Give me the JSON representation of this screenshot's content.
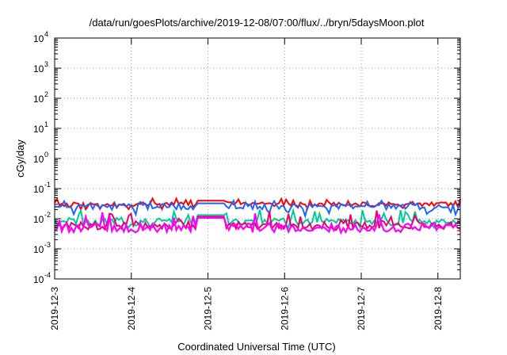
{
  "chart_data": {
    "type": "line",
    "title": "/data/run/goesPlots/archive/2019-12-08/07:00/flux/../bryn/5daysMoon.plot",
    "xlabel": "Coordinated Universal Time (UTC)",
    "ylabel": "cGy/day",
    "y_scale": "log",
    "ylim": [
      0.0001,
      10000
    ],
    "xlim": [
      "2019-12-03",
      "2019-12-08 07:00"
    ],
    "grid": true,
    "x_tick_labels": [
      "2019-12-3",
      "2019-12-4",
      "2019-12-5",
      "2019-12-6",
      "2019-12-7",
      "2019-12-8"
    ],
    "y_tick_labels": [
      {
        "base": "10",
        "exp": "-4"
      },
      {
        "base": "10",
        "exp": "-3"
      },
      {
        "base": "10",
        "exp": "-2"
      },
      {
        "base": "10",
        "exp": "-1"
      },
      {
        "base": "10",
        "exp": "0"
      },
      {
        "base": "10",
        "exp": "1"
      },
      {
        "base": "10",
        "exp": "2"
      },
      {
        "base": "10",
        "exp": "3"
      },
      {
        "base": "10",
        "exp": "4"
      }
    ],
    "series": [
      {
        "color": "#ff0000",
        "values_approx": {
          "typical": 0.03,
          "min": 0.02,
          "max": 0.05
        }
      },
      {
        "color": "#1e64ff",
        "values_approx": {
          "typical": 0.025,
          "min": 0.012,
          "max": 0.04
        }
      },
      {
        "color": "#00c896",
        "values_approx": {
          "typical": 0.008,
          "min": 0.005,
          "max": 0.02
        }
      },
      {
        "color": "#e6006e",
        "values_approx": {
          "typical": 0.006,
          "min": 0.004,
          "max": 0.02
        }
      },
      {
        "color": "#ff00ff",
        "values_approx": {
          "typical": 0.005,
          "min": 0.003,
          "max": 0.02
        }
      }
    ]
  }
}
